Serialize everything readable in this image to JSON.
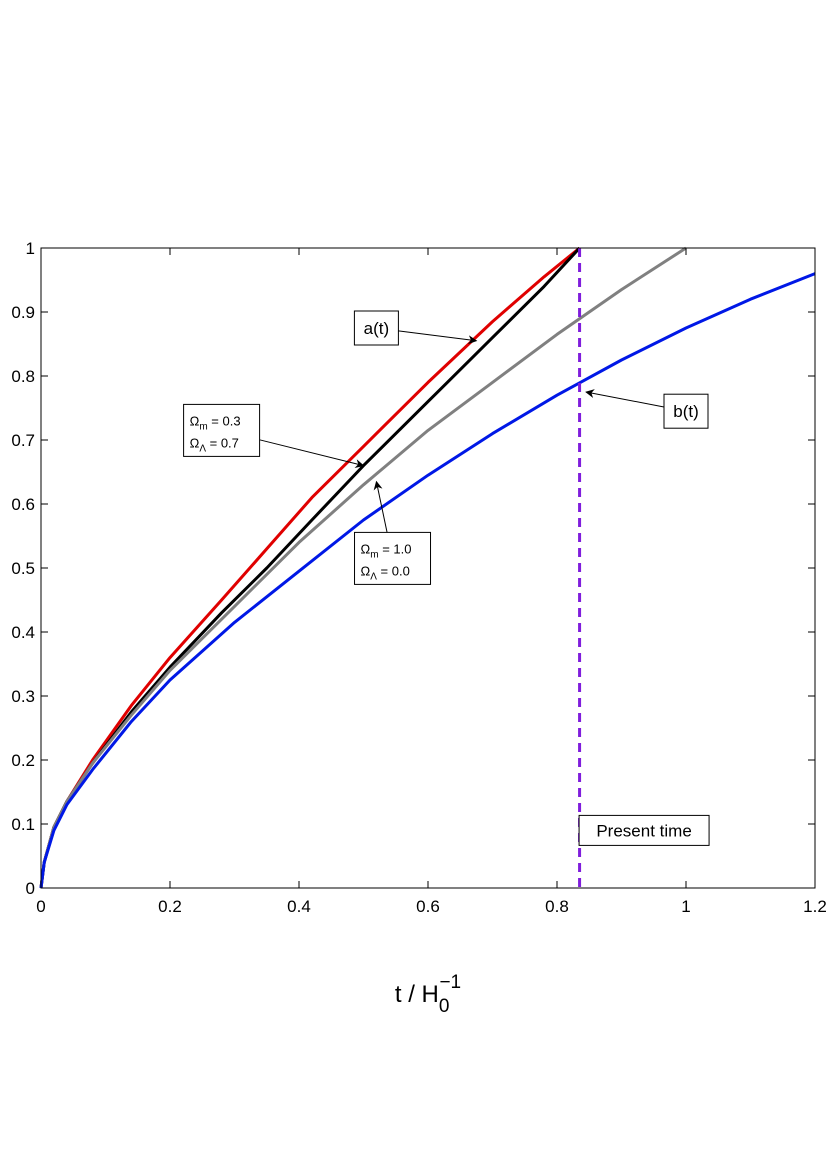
{
  "chart_data": {
    "type": "line",
    "title": "",
    "xlabel": "t / H0^-1",
    "xlabel_parts": {
      "main": "t / H",
      "sub": "0",
      "sup": "−1"
    },
    "ylabel": "",
    "xlim": [
      0,
      1.2
    ],
    "ylim": [
      0,
      1
    ],
    "xticks": [
      0,
      0.2,
      0.4,
      0.6,
      0.8,
      1,
      1.2
    ],
    "xtick_labels": [
      "0",
      "0.2",
      "0.4",
      "0.6",
      "0.8",
      "1",
      "1.2"
    ],
    "yticks": [
      0,
      0.1,
      0.2,
      0.3,
      0.4,
      0.5,
      0.6,
      0.7,
      0.8,
      0.9,
      1
    ],
    "ytick_labels": [
      "0",
      "0.1",
      "0.2",
      "0.3",
      "0.4",
      "0.5",
      "0.6",
      "0.7",
      "0.8",
      "0.9",
      "1"
    ],
    "grid": false,
    "series": [
      {
        "color": "#e00000",
        "x": [
          0,
          0.005,
          0.02,
          0.04,
          0.08,
          0.14,
          0.2,
          0.28,
          0.35,
          0.42,
          0.5,
          0.6,
          0.7,
          0.78,
          0.835
        ],
        "y": [
          0,
          0.04,
          0.095,
          0.135,
          0.2,
          0.285,
          0.36,
          0.45,
          0.53,
          0.61,
          0.69,
          0.79,
          0.885,
          0.955,
          1.0
        ]
      },
      {
        "color": "#000000",
        "x": [
          0,
          0.005,
          0.02,
          0.04,
          0.08,
          0.14,
          0.2,
          0.28,
          0.35,
          0.42,
          0.5,
          0.6,
          0.7,
          0.78,
          0.835
        ],
        "y": [
          0,
          0.04,
          0.095,
          0.135,
          0.195,
          0.275,
          0.345,
          0.43,
          0.5,
          0.575,
          0.66,
          0.76,
          0.86,
          0.94,
          1.0
        ]
      },
      {
        "color": "#808080",
        "x": [
          0,
          0.005,
          0.02,
          0.04,
          0.08,
          0.14,
          0.2,
          0.3,
          0.4,
          0.5,
          0.6,
          0.7,
          0.8,
          0.9,
          1.0
        ],
        "y": [
          0,
          0.04,
          0.095,
          0.135,
          0.195,
          0.27,
          0.34,
          0.44,
          0.54,
          0.63,
          0.715,
          0.79,
          0.865,
          0.935,
          1.0
        ]
      },
      {
        "color": "#0018e6",
        "x": [
          0,
          0.005,
          0.02,
          0.04,
          0.08,
          0.14,
          0.2,
          0.3,
          0.4,
          0.5,
          0.6,
          0.7,
          0.8,
          0.9,
          1.0,
          1.1,
          1.2
        ],
        "y": [
          0,
          0.04,
          0.09,
          0.13,
          0.185,
          0.26,
          0.325,
          0.415,
          0.495,
          0.575,
          0.645,
          0.71,
          0.77,
          0.825,
          0.875,
          0.92,
          0.96
        ]
      }
    ],
    "present_time": {
      "x": 0.835,
      "color": "#7f1ddc"
    },
    "annotations": [
      {
        "id": "a",
        "type": "simple",
        "text": "a(t)",
        "box_x": 0.52,
        "box_y": 0.875,
        "arrow_to": [
          0.675,
          0.855
        ]
      },
      {
        "id": "lcdm",
        "type": "omega",
        "m_value": " = 0.3",
        "l_value": " = 0.7",
        "box_x": 0.28,
        "box_y": 0.715,
        "arrow_to": [
          0.5,
          0.66
        ]
      },
      {
        "id": "eds",
        "type": "omega",
        "m_value": " = 1.0",
        "l_value": " = 0.0",
        "box_x": 0.545,
        "box_y": 0.515,
        "arrow_to": [
          0.52,
          0.635
        ]
      },
      {
        "id": "b",
        "type": "simple",
        "text": "b(t)",
        "box_x": 1.0,
        "box_y": 0.745,
        "arrow_to": [
          0.845,
          0.775
        ]
      },
      {
        "id": "present",
        "type": "simple",
        "text": "Present time",
        "box_x": 0.935,
        "box_y": 0.09,
        "arrow_to": null
      }
    ],
    "omega_symbol": "Ω",
    "omega_sub_m": "m",
    "omega_sub_l": "Λ"
  }
}
